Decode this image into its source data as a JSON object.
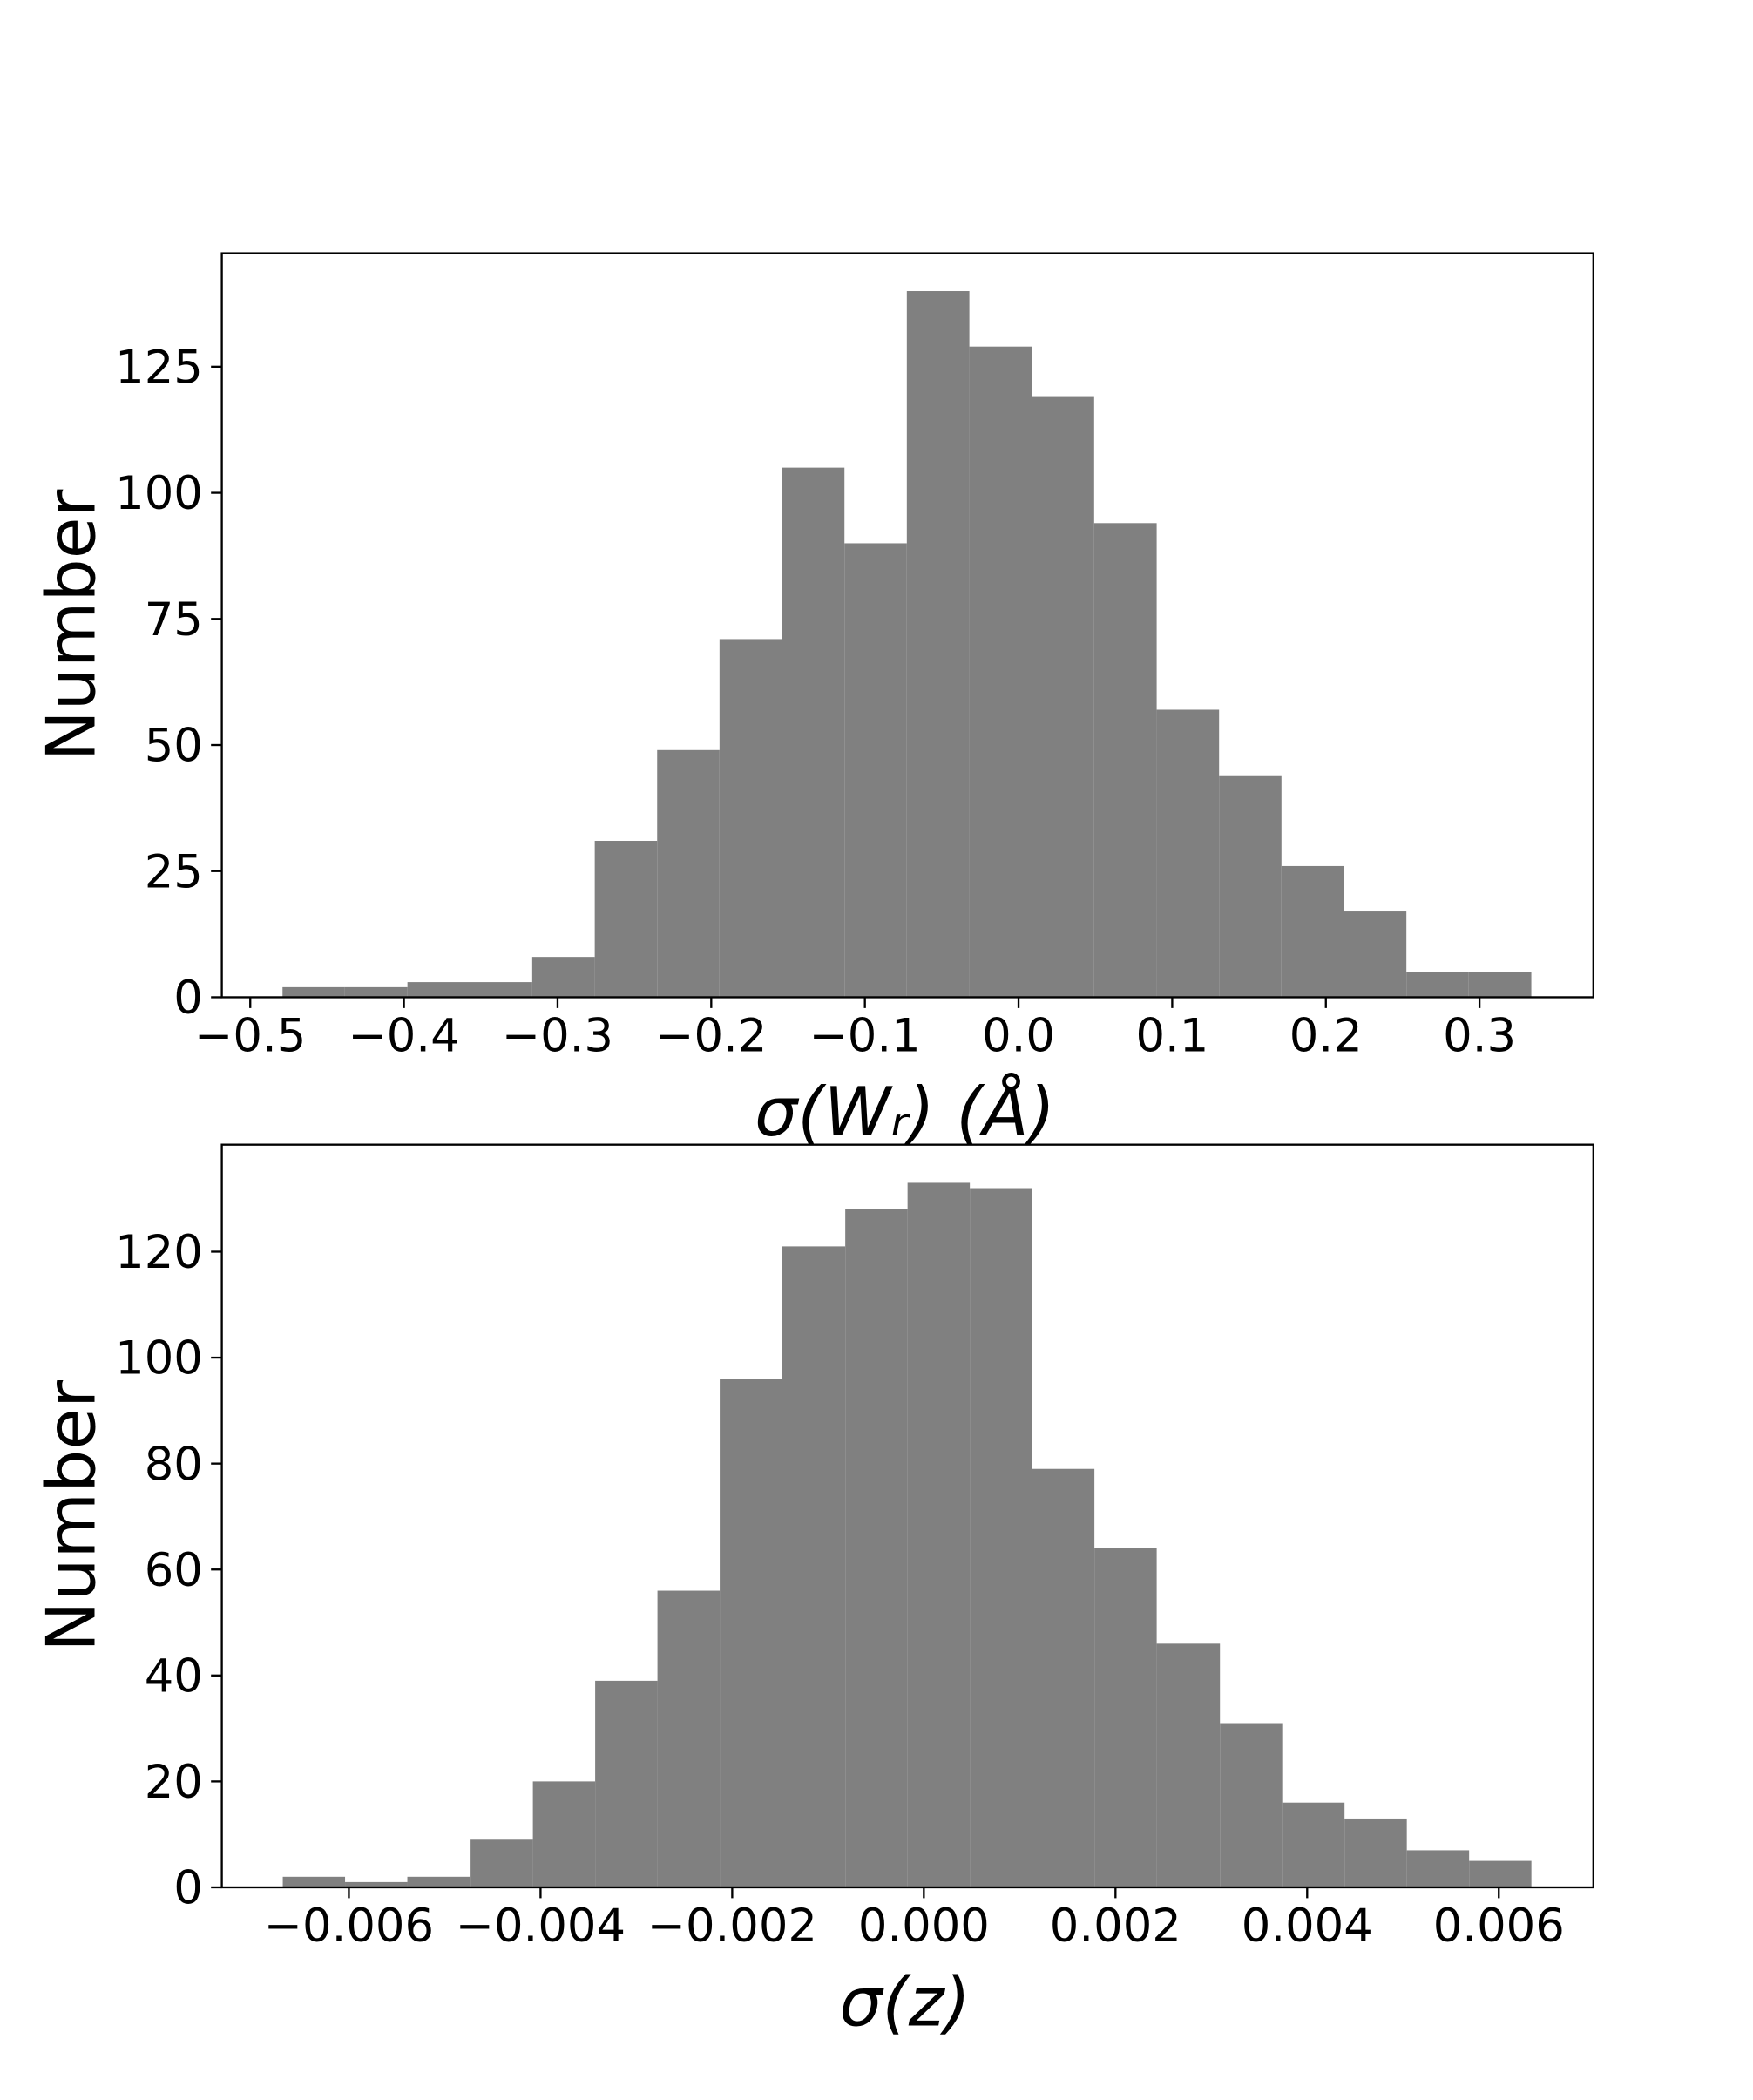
{
  "chart_data": [
    {
      "type": "histogram",
      "color": "#808080",
      "xlabel": "σ(Wᵣ) (Å)",
      "ylabel": "Number",
      "bins": [
        -0.479,
        -0.4384,
        -0.3977,
        -0.3571,
        -0.3165,
        -0.2758,
        -0.2352,
        -0.1946,
        -0.1539,
        -0.1133,
        -0.0727,
        -0.032,
        0.0086,
        0.0492,
        0.0899,
        0.1305,
        0.1711,
        0.2118,
        0.2524,
        0.293,
        0.3337
      ],
      "values": [
        2,
        2,
        3,
        3,
        8,
        31,
        49,
        71,
        105,
        90,
        140,
        129,
        119,
        94,
        57,
        44,
        26,
        17,
        5,
        5
      ],
      "xlim": [
        -0.5185,
        0.3741
      ],
      "ylim": [
        0,
        147.5
      ],
      "xticks": [
        {
          "value": -0.5,
          "label": "−0.5"
        },
        {
          "value": -0.4,
          "label": "−0.4"
        },
        {
          "value": -0.3,
          "label": "−0.3"
        },
        {
          "value": -0.2,
          "label": "−0.2"
        },
        {
          "value": -0.1,
          "label": "−0.1"
        },
        {
          "value": 0,
          "label": "0.0"
        },
        0.1,
        0.2,
        0.3
      ],
      "yticks": [
        0,
        25,
        50,
        75,
        100,
        125
      ]
    },
    {
      "type": "histogram",
      "color": "#808080",
      "xlabel": "σ(z)",
      "ylabel": "Number",
      "bins": [
        -0.00669,
        -0.00604,
        -0.00539,
        -0.00473,
        -0.00408,
        -0.00343,
        -0.00278,
        -0.00213,
        -0.00148,
        -0.00082,
        -0.00017,
        0.00048,
        0.00113,
        0.00178,
        0.00243,
        0.00309,
        0.00374,
        0.00439,
        0.00504,
        0.00569,
        0.00634
      ],
      "values": [
        2,
        1,
        2,
        9,
        20,
        39,
        56,
        96,
        121,
        128,
        133,
        132,
        79,
        64,
        46,
        31,
        16,
        13,
        7,
        5
      ],
      "xlim": [
        -0.007326,
        0.006987
      ],
      "ylim": [
        0,
        140.2
      ],
      "xticks": [
        {
          "value": -0.006,
          "label": "−0.006"
        },
        {
          "value": -0.004,
          "label": "−0.004"
        },
        {
          "value": -0.002,
          "label": "−0.002"
        },
        {
          "value": 0,
          "label": "0.000"
        },
        0.002,
        0.004,
        0.006
      ],
      "yticks": [
        0,
        20,
        40,
        60,
        80,
        100,
        120
      ]
    }
  ]
}
